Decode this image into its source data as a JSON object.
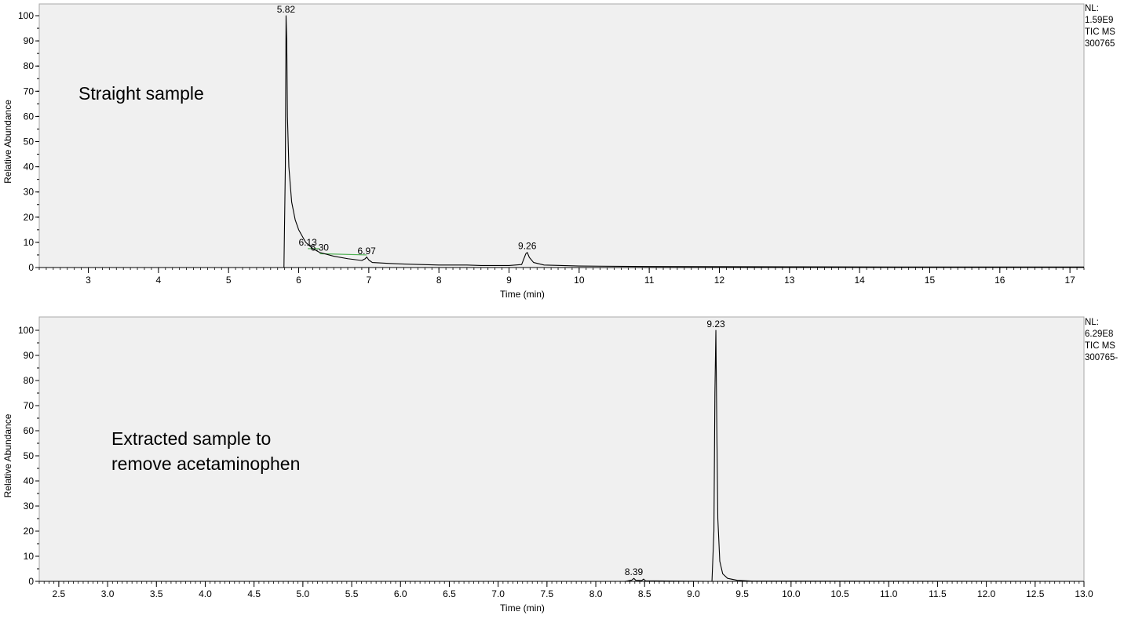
{
  "chart_data": [
    {
      "type": "line",
      "title": "",
      "xlabel": "Time (min)",
      "ylabel": "Relative Abundance",
      "xlim": [
        2.3,
        17.2
      ],
      "ylim": [
        0,
        100
      ],
      "x_ticks": [
        "3",
        "4",
        "5",
        "6",
        "7",
        "8",
        "9",
        "10",
        "11",
        "12",
        "13",
        "14",
        "15",
        "16",
        "17"
      ],
      "y_ticks": [
        "0",
        "10",
        "20",
        "30",
        "40",
        "50",
        "60",
        "70",
        "80",
        "90",
        "100"
      ],
      "side_notes": [
        "NL:",
        "1.59E9",
        "TIC  MS",
        "300765"
      ],
      "annotation": [
        "Straight sample"
      ],
      "peak_labels": [
        {
          "text": "5.82",
          "x": 5.82,
          "y": 100
        },
        {
          "text": "6.13",
          "x": 6.13,
          "y": 7.5
        },
        {
          "text": "6.30",
          "x": 6.3,
          "y": 5.5
        },
        {
          "text": "6.97",
          "x": 6.97,
          "y": 4.0
        },
        {
          "text": "9.26",
          "x": 9.26,
          "y": 6.0
        }
      ],
      "series": [
        {
          "color": "#000000",
          "x": [
            2.3,
            5.0,
            5.79,
            5.81,
            5.82,
            5.83,
            5.84,
            5.86,
            5.9,
            5.95,
            6.0,
            6.1,
            6.2,
            6.3,
            6.5,
            6.7,
            6.9,
            6.95,
            6.97,
            7.0,
            7.05,
            7.3,
            7.6,
            8.0,
            8.4,
            8.6,
            9.0,
            9.18,
            9.24,
            9.26,
            9.29,
            9.35,
            9.5,
            10.0,
            11.0,
            13.0,
            15.0,
            17.2
          ],
          "y": [
            0,
            0,
            0,
            40,
            100,
            90,
            60,
            40,
            26,
            19,
            15,
            10,
            7.5,
            6,
            4.5,
            3.5,
            2.8,
            3.5,
            4.2,
            3.0,
            2.0,
            1.6,
            1.3,
            1.0,
            1.0,
            0.8,
            0.8,
            1.2,
            5.5,
            6.0,
            4.0,
            2.0,
            1.0,
            0.6,
            0.4,
            0.3,
            0.2,
            0.2
          ]
        }
      ],
      "baseline_segments": [
        {
          "color": "#4caf50",
          "x": [
            6.13,
            6.3
          ],
          "y": [
            7.5,
            7.5
          ]
        },
        {
          "color": "#4caf50",
          "x": [
            6.3,
            6.97
          ],
          "y": [
            5.5,
            5.0
          ]
        }
      ]
    },
    {
      "type": "line",
      "title": "",
      "xlabel": "Time (min)",
      "ylabel": "Relative Abundance",
      "xlim": [
        2.3,
        13.0
      ],
      "ylim": [
        0,
        100
      ],
      "x_ticks": [
        "2.5",
        "3.0",
        "3.5",
        "4.0",
        "4.5",
        "5.0",
        "5.5",
        "6.0",
        "6.5",
        "7.0",
        "7.5",
        "8.0",
        "8.5",
        "9.0",
        "9.5",
        "10.0",
        "10.5",
        "11.0",
        "11.5",
        "12.0",
        "12.5",
        "13.0"
      ],
      "y_ticks": [
        "0",
        "10",
        "20",
        "30",
        "40",
        "50",
        "60",
        "70",
        "80",
        "90",
        "100"
      ],
      "side_notes": [
        "NL:",
        "6.29E8",
        "TIC  MS",
        "300765-"
      ],
      "annotation": [
        "Extracted sample to",
        "remove acetaminophen"
      ],
      "peak_labels": [
        {
          "text": "9.23",
          "x": 9.23,
          "y": 100
        },
        {
          "text": "8.39",
          "x": 8.39,
          "y": 1.2
        }
      ],
      "series": [
        {
          "color": "#000000",
          "x": [
            2.3,
            8.3,
            8.37,
            8.39,
            8.41,
            8.47,
            8.49,
            8.51,
            9.19,
            9.21,
            9.22,
            9.23,
            9.24,
            9.25,
            9.27,
            9.3,
            9.35,
            9.45,
            9.6,
            13.0
          ],
          "y": [
            0,
            0,
            0.5,
            1.2,
            0.4,
            0.3,
            0.9,
            0.2,
            0,
            20,
            75,
            100,
            60,
            25,
            8,
            3,
            1.2,
            0.4,
            0.1,
            0
          ]
        }
      ],
      "baseline_segments": []
    }
  ]
}
